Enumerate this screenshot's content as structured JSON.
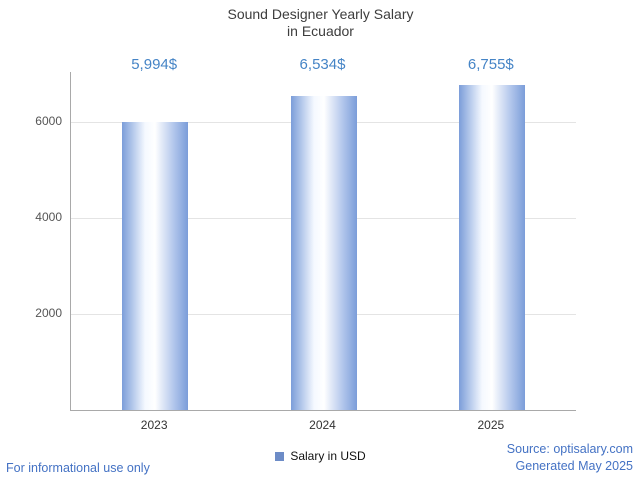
{
  "title": {
    "line1": "Sound Designer Yearly Salary",
    "line2": "in Ecuador"
  },
  "chart_data": {
    "type": "bar",
    "title": "Sound Designer Yearly Salary in Ecuador",
    "categories": [
      "2023",
      "2024",
      "2025"
    ],
    "values": [
      5994,
      6534,
      6755
    ],
    "value_labels": [
      "5,994$",
      "6,534$",
      "6,755$"
    ],
    "xlabel": "",
    "ylabel": "",
    "ylim": [
      0,
      7030
    ],
    "yticks": [
      2000,
      4000,
      6000
    ],
    "grid": true,
    "legend": {
      "label": "Salary in USD",
      "position": "bottom",
      "marker_color": "#6d8cc7"
    }
  },
  "footer": {
    "left": "For informational use only",
    "source": "Source: optisalary.com",
    "generated": "Generated May 2025"
  },
  "colors": {
    "bar_edge": "#7b9dd9",
    "bar_center": "#ffffff",
    "value_label": "#4584c6",
    "footer_blue": "#4472c4",
    "title_text": "#3d3d3d",
    "axis": "#a9a9a9",
    "gridline": "#e4e4e4"
  }
}
